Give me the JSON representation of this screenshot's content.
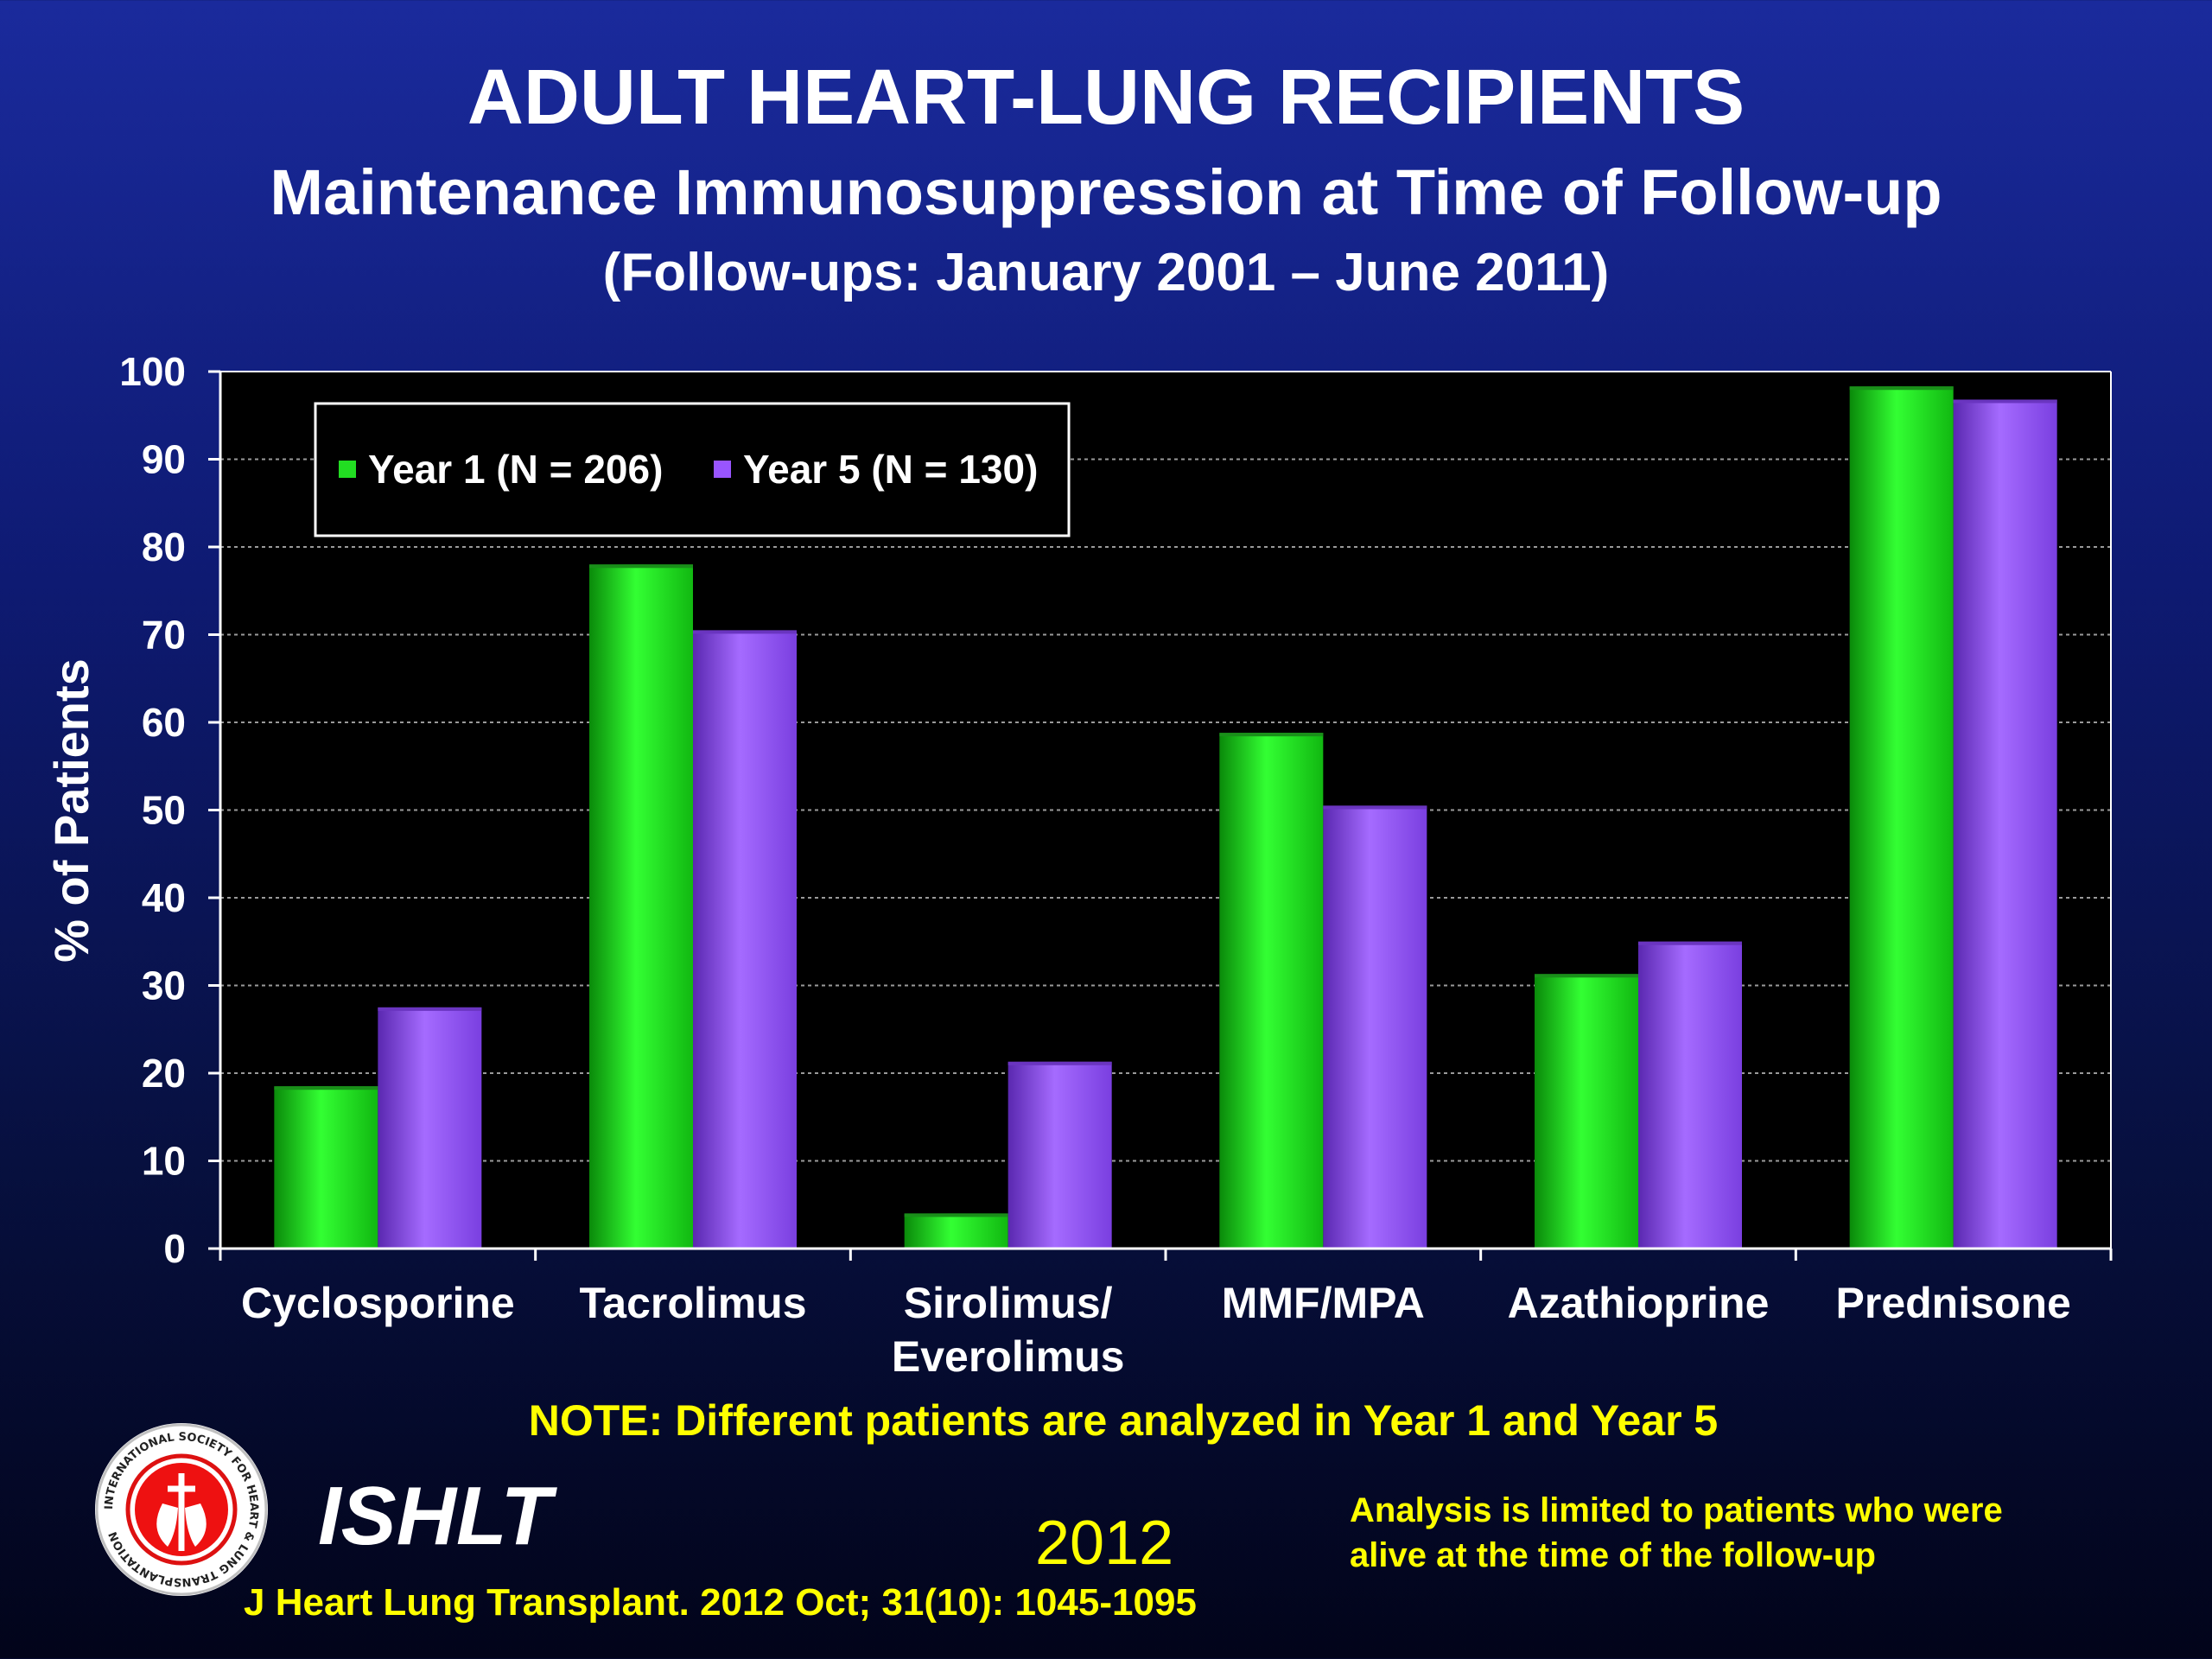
{
  "header": {
    "title": "ADULT HEART-LUNG RECIPIENTS",
    "subtitle": "Maintenance Immunosuppression at Time of Follow-up",
    "subtitle2": "(Follow-ups: January 2001 – June 2011)"
  },
  "chart_data": {
    "type": "bar",
    "title": "ADULT HEART-LUNG RECIPIENTS",
    "subtitle": "Maintenance Immunosuppression at Time of Follow-up",
    "xlabel": "",
    "ylabel": "% of Patients",
    "ylim": [
      0,
      100
    ],
    "yticks": [
      0,
      10,
      20,
      30,
      40,
      50,
      60,
      70,
      80,
      90,
      100
    ],
    "grid": true,
    "legend": "top-left",
    "categories": [
      [
        "Cyclosporine"
      ],
      [
        "Tacrolimus"
      ],
      [
        "Sirolimus/",
        "Everolimus"
      ],
      [
        "MMF/MPA"
      ],
      [
        "Azathioprine"
      ],
      [
        "Prednisone"
      ]
    ],
    "series": [
      {
        "name": "Year 1 (N = 206)",
        "color": "#22dd22",
        "values": [
          18.5,
          78,
          4,
          58.8,
          31.3,
          98.3
        ]
      },
      {
        "name": "Year 5 (N = 130)",
        "color": "#9955ff",
        "values": [
          27.5,
          70.5,
          21.3,
          50.5,
          35,
          96.8
        ]
      }
    ]
  },
  "footer": {
    "note": "NOTE: Different patients are analyzed in Year 1 and Year 5",
    "org": "ISHLT",
    "year": "2012",
    "citation": "J Heart Lung Transplant.  2012 Oct; 31(10): 1045-1095",
    "analysis_line1": "Analysis is limited to patients who were",
    "analysis_line2": "alive at the time of the follow-up",
    "logo_text": "INTERNATIONAL SOCIETY FOR HEART & LUNG TRANSPLANTATION"
  }
}
